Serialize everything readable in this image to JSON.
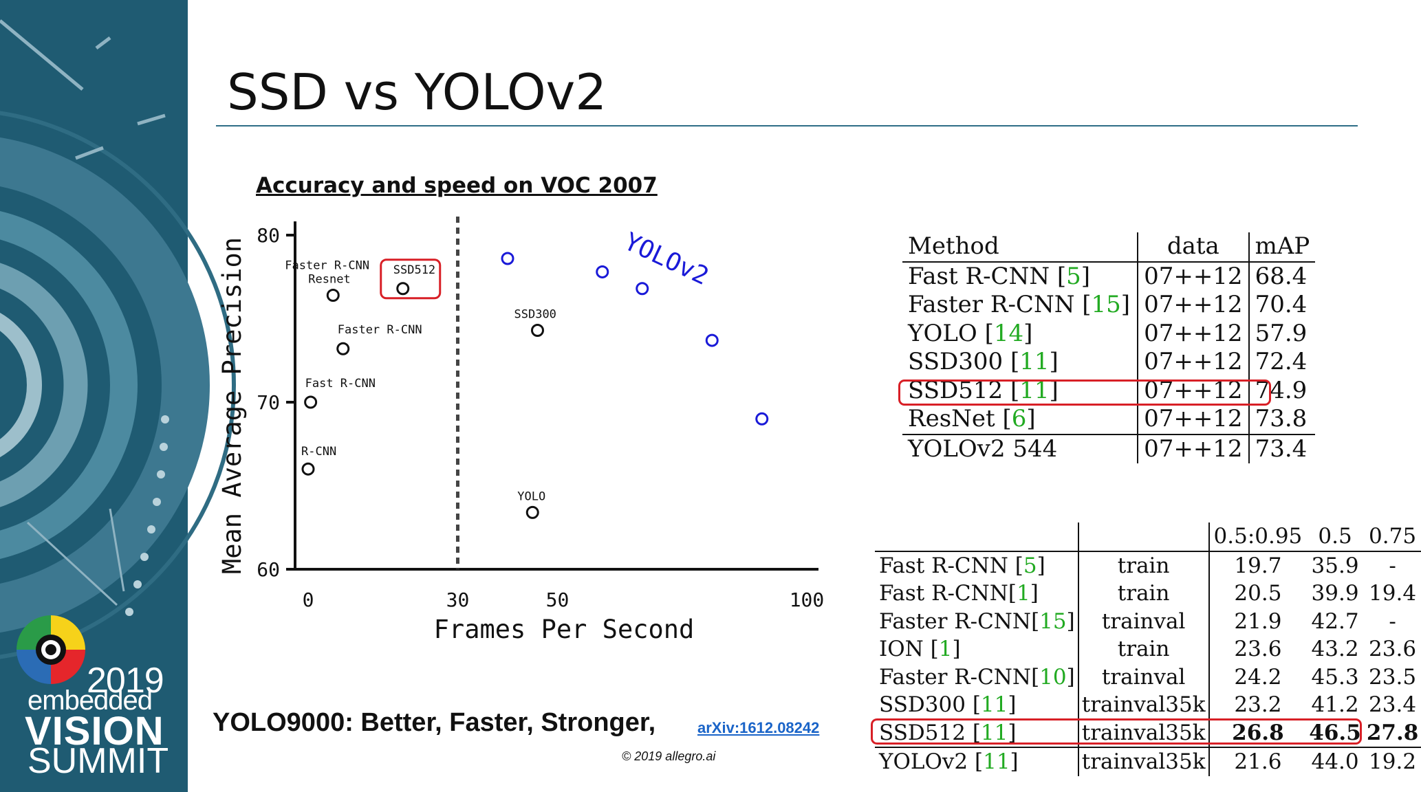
{
  "slide": {
    "title": "SSD vs YOLOv2",
    "chart_heading": "Accuracy and speed on VOC 2007",
    "citation": "YOLO9000: Better, Faster, Stronger,",
    "arxiv_link": "arXiv:1612.08242",
    "copyright": "© 2019 allegro.ai"
  },
  "branding": {
    "year": "2019",
    "line1": "embedded",
    "line2": "VISION",
    "line3": "SUMMIT",
    "sidebar_color": "#1f5b72",
    "logo_colors": [
      "#e5262b",
      "#f6d21a",
      "#2a9b48",
      "#2b6cb5",
      "#f08a1d",
      "#7a3f98"
    ]
  },
  "chart_data": {
    "type": "scatter",
    "xlabel": "Frames Per Second",
    "ylabel": "Mean Average Precision",
    "xlim": [
      0,
      100
    ],
    "ylim": [
      60,
      80
    ],
    "xticks": [
      "0",
      "30",
      "50",
      "100"
    ],
    "yticks": [
      "60",
      "70",
      "80"
    ],
    "threshold_line_x": 30,
    "series": [
      {
        "color": "#111111",
        "points": [
          {
            "label": "R-CNN",
            "x": 0,
            "y": 66.0
          },
          {
            "label": "Fast R-CNN",
            "x": 0.5,
            "y": 70.0
          },
          {
            "label": "Faster R-CNN",
            "x": 7,
            "y": 73.2
          },
          {
            "label": "Faster R-CNN Resnet",
            "x": 5,
            "y": 76.4
          },
          {
            "label": "SSD512",
            "x": 19,
            "y": 76.8
          },
          {
            "label": "SSD300",
            "x": 46,
            "y": 74.3
          },
          {
            "label": "YOLO",
            "x": 45,
            "y": 63.4
          }
        ]
      },
      {
        "name": "YOLOv2",
        "color": "#1a1ad8",
        "points": [
          {
            "x": 40,
            "y": 78.6
          },
          {
            "x": 59,
            "y": 77.8
          },
          {
            "x": 67,
            "y": 76.8
          },
          {
            "x": 81,
            "y": 73.7
          },
          {
            "x": 91,
            "y": 69.0
          }
        ]
      }
    ],
    "highlighted": "SSD512"
  },
  "table_voc": {
    "headers": [
      "Method",
      "data",
      "mAP"
    ],
    "rows": [
      {
        "method": "Fast R-CNN ",
        "ref": "5",
        "data": "07++12",
        "map": "68.4"
      },
      {
        "method": "Faster R-CNN ",
        "ref": "15",
        "data": "07++12",
        "map": "70.4"
      },
      {
        "method": "YOLO ",
        "ref": "14",
        "data": "07++12",
        "map": "57.9"
      },
      {
        "method": "SSD300 ",
        "ref": "11",
        "data": "07++12",
        "map": "72.4"
      },
      {
        "method": "SSD512 ",
        "ref": "11",
        "data": "07++12",
        "map": "74.9"
      },
      {
        "method": "ResNet ",
        "ref": "6",
        "data": "07++12",
        "map": "73.8"
      },
      {
        "method": "YOLOv2 544",
        "ref": "",
        "data": "07++12",
        "map": "73.4"
      }
    ],
    "highlight_row": 4
  },
  "table_coco": {
    "headers": [
      "",
      "",
      "0.5:0.95",
      "0.5",
      "0.75"
    ],
    "rows": [
      {
        "method": "Fast R-CNN ",
        "ref": "5",
        "data": "train",
        "a": "19.7",
        "b": "35.9",
        "c": "-"
      },
      {
        "method": "Fast R-CNN",
        "ref": "1",
        "data": "train",
        "a": "20.5",
        "b": "39.9",
        "c": "19.4"
      },
      {
        "method": "Faster R-CNN",
        "ref": "15",
        "data": "trainval",
        "a": "21.9",
        "b": "42.7",
        "c": "-"
      },
      {
        "method": "ION ",
        "ref": "1",
        "data": "train",
        "a": "23.6",
        "b": "43.2",
        "c": "23.6"
      },
      {
        "method": "Faster R-CNN",
        "ref": "10",
        "data": "trainval",
        "a": "24.2",
        "b": "45.3",
        "c": "23.5"
      },
      {
        "method": "SSD300 ",
        "ref": "11",
        "data": "trainval35k",
        "a": "23.2",
        "b": "41.2",
        "c": "23.4"
      },
      {
        "method": "SSD512 ",
        "ref": "11",
        "data": "trainval35k",
        "a": "26.8",
        "b": "46.5",
        "c": "27.8"
      },
      {
        "method": "YOLOv2 ",
        "ref": "11",
        "data": "trainval35k",
        "a": "21.6",
        "b": "44.0",
        "c": "19.2"
      }
    ],
    "highlight_row": 6
  }
}
